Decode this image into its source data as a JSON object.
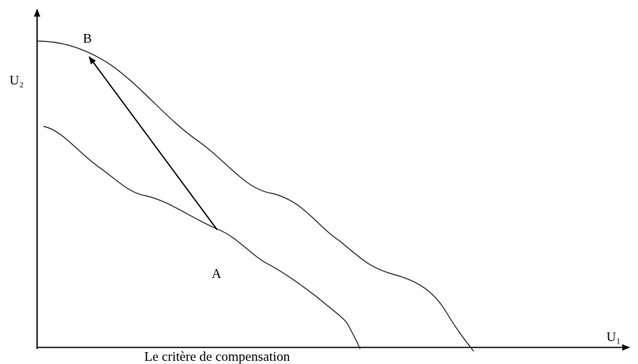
{
  "points": {
    "b": "B",
    "a": "A"
  },
  "axes": {
    "y_label": "U₂",
    "x_label": "U₁"
  },
  "caption": "Le critère de compensation"
}
